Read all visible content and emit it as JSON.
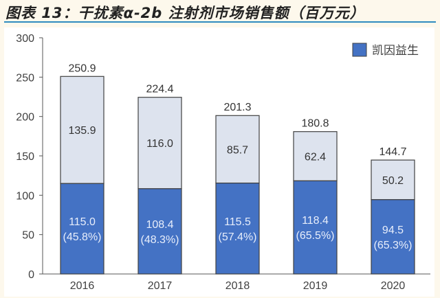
{
  "title": "图表 13：干扰素α-2b 注射剂市场销售额（百万元）",
  "colors": {
    "kaiyin": "#4472c4",
    "other": "#dde3ee",
    "page_bg": "#fdf8ec",
    "title_rule": "#2e8bc0"
  },
  "chart_data": {
    "type": "bar",
    "stacked": true,
    "categories": [
      "2016",
      "2017",
      "2018",
      "2019",
      "2020"
    ],
    "series": [
      {
        "name": "凯因益生",
        "values": [
          115.0,
          108.4,
          115.5,
          118.4,
          94.5
        ],
        "labels": [
          "115.0\n(45.8%)",
          "108.4\n(48.3%)",
          "115.5\n(57.4%)",
          "118.4\n(65.5%)",
          "94.5\n(65.3%)"
        ],
        "color": "#4472c4"
      },
      {
        "values": [
          135.9,
          116.0,
          85.7,
          62.4,
          50.2
        ],
        "labels": [
          "135.9",
          "116.0",
          "85.7",
          "62.4",
          "50.2"
        ],
        "color": "#dde3ee"
      }
    ],
    "totals": [
      "250.9",
      "224.4",
      "201.3",
      "180.8",
      "144.7"
    ],
    "ylim": [
      0,
      300
    ],
    "yticks": [
      "0",
      "50",
      "100",
      "150",
      "200",
      "250",
      "300"
    ],
    "grid": false,
    "legend": "top-right"
  }
}
